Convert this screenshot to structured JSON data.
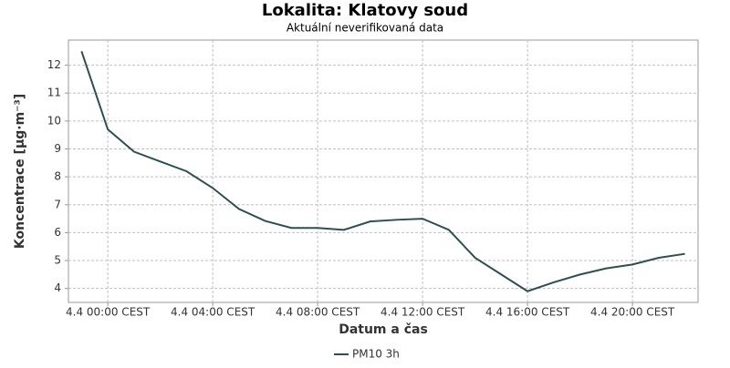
{
  "chart_data": {
    "type": "line",
    "title": "Lokalita: Klatovy soud",
    "subtitle": "Aktuální neverifikovaná data",
    "x_label": "Datum a čas",
    "y_label": "Koncentrace [µg·m⁻³]",
    "categories": [
      null,
      "4.4 00:00 CEST",
      null,
      null,
      null,
      "4.4 04:00 CEST",
      null,
      null,
      null,
      "4.4 08:00 CEST",
      null,
      null,
      null,
      "4.4 12:00 CEST",
      null,
      null,
      null,
      "4.4 16:00 CEST",
      null,
      null,
      null,
      "4.4 20:00 CEST",
      null,
      null
    ],
    "series": [
      {
        "name": "PM10 3h",
        "color": "#2f4f4f",
        "values": [
          12.5,
          9.7,
          8.9,
          8.55,
          8.2,
          7.6,
          6.85,
          6.42,
          6.17,
          6.17,
          6.1,
          6.4,
          6.46,
          6.5,
          6.1,
          5.1,
          4.5,
          3.9,
          4.22,
          4.5,
          4.72,
          4.86,
          5.1,
          5.24
        ]
      }
    ],
    "ylim": [
      3.5,
      12.9
    ],
    "yticks": [
      4,
      5,
      6,
      7,
      8,
      9,
      10,
      11,
      12
    ],
    "grid": true,
    "legend": "bottom"
  }
}
